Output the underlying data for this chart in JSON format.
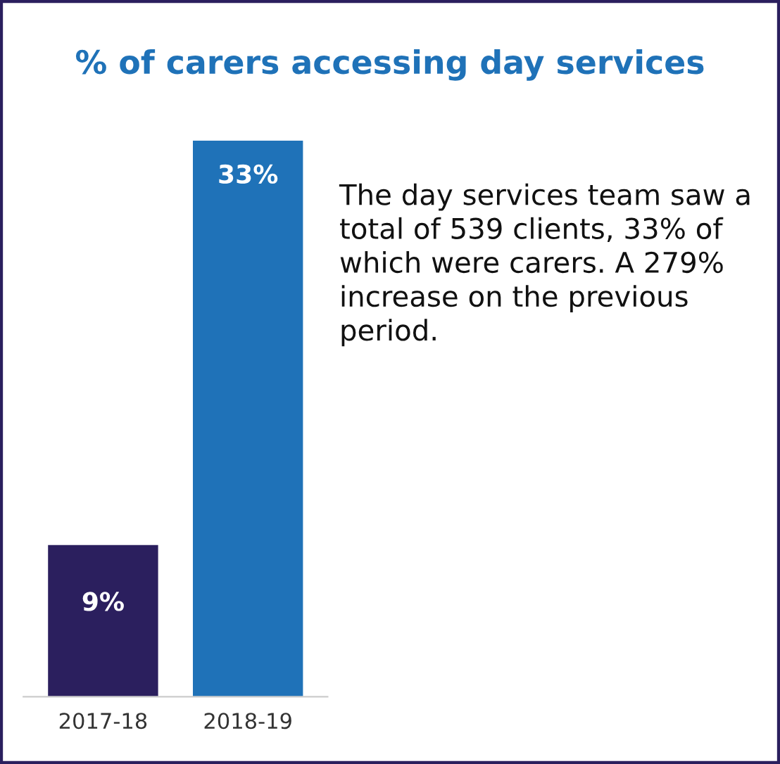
{
  "chart_data": {
    "type": "bar",
    "title": "% of carers accessing day services",
    "categories": [
      "2017-18",
      "2018-19"
    ],
    "values": [
      9,
      33
    ],
    "colors": [
      "#2b1f5e",
      "#1f72b8"
    ],
    "value_labels": [
      "9%",
      "33%"
    ],
    "annotations": [
      "The day services team saw a total of 539 clients, 33% of which were carers. A 279% increase on the previous period."
    ],
    "grid": false,
    "legend": false
  }
}
